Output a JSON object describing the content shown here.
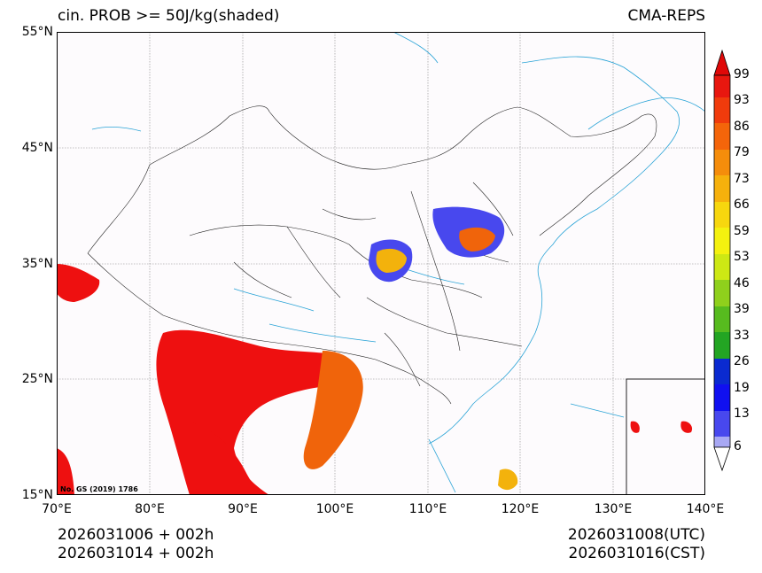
{
  "header": {
    "title_left": "cin. PROB >= 50J/kg(shaded)",
    "title_right": "CMA-REPS"
  },
  "axes": {
    "lat_ticks": [
      "55°N",
      "45°N",
      "35°N",
      "25°N",
      "15°N"
    ],
    "lon_ticks": [
      "70°E",
      "80°E",
      "90°E",
      "100°E",
      "110°E",
      "120°E",
      "130°E",
      "140°E"
    ]
  },
  "map": {
    "copyright": "No. GS (2019) 1786",
    "background_color": "#fdfbfd",
    "water_color": "#29a3d6",
    "border_color": "#222222"
  },
  "colorbar": {
    "levels": [
      "99",
      "93",
      "86",
      "79",
      "73",
      "66",
      "59",
      "53",
      "46",
      "39",
      "33",
      "26",
      "19",
      "13",
      "6"
    ],
    "colors": [
      "#e8170f",
      "#f03b0c",
      "#f4650a",
      "#f58d0b",
      "#f6b10c",
      "#f7d70e",
      "#f4f10f",
      "#cde814",
      "#8fd01c",
      "#57bb1f",
      "#23a523",
      "#0a2ad0",
      "#1010f0",
      "#4848ee",
      "#a8a8f4"
    ],
    "top_arrow_color": "#e00808"
  },
  "footer": {
    "init_utc": "2026031006  +  002h",
    "init_cst": "2026031014  +  002h",
    "valid_utc": "2026031008(UTC)",
    "valid_cst": "2026031016(CST)"
  }
}
